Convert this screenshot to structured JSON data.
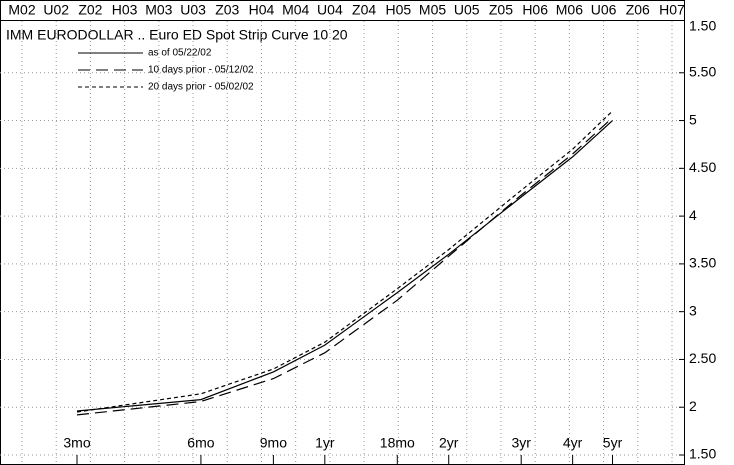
{
  "chart_data": {
    "type": "line",
    "title": "IMM EURODOLLAR .. Euro ED Spot Strip Curve 10 20",
    "top_axis_labels": [
      "M02",
      "U02",
      "Z02",
      "H03",
      "M03",
      "U03",
      "Z03",
      "H04",
      "M04",
      "U04",
      "Z04",
      "H05",
      "M05",
      "U05",
      "Z05",
      "H06",
      "M06",
      "U06",
      "Z06",
      "H07"
    ],
    "annotations": [
      "1.50"
    ],
    "x": [
      3,
      6,
      9,
      12,
      18,
      24,
      36,
      48,
      60
    ],
    "xlim": [
      1.95,
      90
    ],
    "xscale": "log",
    "xticks": [
      {
        "value": 3,
        "label": "3mo"
      },
      {
        "value": 6,
        "label": "6mo"
      },
      {
        "value": 9,
        "label": "9mo"
      },
      {
        "value": 12,
        "label": "1yr"
      },
      {
        "value": 18,
        "label": "18mo"
      },
      {
        "value": 24,
        "label": "2yr"
      },
      {
        "value": 36,
        "label": "3yr"
      },
      {
        "value": 48,
        "label": "4yr"
      },
      {
        "value": 60,
        "label": "5yr"
      }
    ],
    "ylim": [
      1.5,
      6
    ],
    "yticks": [
      {
        "value": 1.5,
        "label": "1.50"
      },
      2,
      {
        "value": 2.5,
        "label": "2.50"
      },
      3,
      {
        "value": 3.5,
        "label": "3.50"
      },
      4,
      {
        "value": 4.5,
        "label": "4.50"
      },
      5,
      {
        "value": 5.5,
        "label": "5.50"
      }
    ],
    "grid": true,
    "legend": "top-left",
    "series": [
      {
        "name": "as of 05/22/02",
        "color": "#000000",
        "dash": "none",
        "values": [
          1.96,
          2.08,
          2.37,
          2.65,
          3.2,
          3.6,
          4.2,
          4.62,
          5.0
        ]
      },
      {
        "name": "10 days prior - 05/12/02",
        "color": "#000000",
        "dash": "12,6",
        "values": [
          1.92,
          2.06,
          2.3,
          2.57,
          3.12,
          3.58,
          4.22,
          4.65,
          5.03
        ]
      },
      {
        "name": "20 days prior - 05/02/02",
        "color": "#000000",
        "dash": "4,3",
        "values": [
          1.95,
          2.14,
          2.4,
          2.68,
          3.24,
          3.65,
          4.27,
          4.7,
          5.1
        ]
      }
    ]
  }
}
